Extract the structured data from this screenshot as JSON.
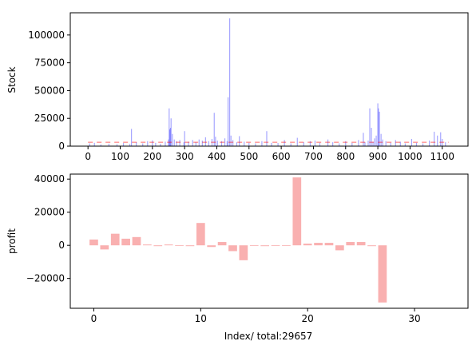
{
  "chart_data": [
    {
      "type": "bar",
      "ylabel": "Stock",
      "xlim": [
        -55,
        1180
      ],
      "ylim": [
        0,
        120000
      ],
      "xticks": [
        0,
        100,
        200,
        300,
        400,
        500,
        600,
        700,
        800,
        900,
        1000,
        1100
      ],
      "yticks": [
        0,
        25000,
        50000,
        75000,
        100000
      ],
      "bar_color": "#0000ff",
      "mean_line": {
        "value": 3500,
        "color": "#ff0000"
      },
      "spikes": [
        [
          5,
          2500
        ],
        [
          20,
          3000
        ],
        [
          40,
          1500
        ],
        [
          65,
          2200
        ],
        [
          90,
          1800
        ],
        [
          110,
          2800
        ],
        [
          130,
          2000
        ],
        [
          135,
          15500
        ],
        [
          150,
          3500
        ],
        [
          170,
          2500
        ],
        [
          185,
          4500
        ],
        [
          200,
          5200
        ],
        [
          210,
          3000
        ],
        [
          225,
          2200
        ],
        [
          240,
          4000
        ],
        [
          250,
          6000
        ],
        [
          252,
          34000
        ],
        [
          254,
          15000
        ],
        [
          256,
          16500
        ],
        [
          258,
          25000
        ],
        [
          262,
          11000
        ],
        [
          268,
          6000
        ],
        [
          275,
          4500
        ],
        [
          285,
          5500
        ],
        [
          298,
          3500
        ],
        [
          300,
          13500
        ],
        [
          312,
          4000
        ],
        [
          325,
          5500
        ],
        [
          335,
          3500
        ],
        [
          345,
          6000
        ],
        [
          355,
          5000
        ],
        [
          365,
          8000
        ],
        [
          375,
          4500
        ],
        [
          385,
          6500
        ],
        [
          392,
          30000
        ],
        [
          396,
          8500
        ],
        [
          402,
          5000
        ],
        [
          415,
          4500
        ],
        [
          425,
          7000
        ],
        [
          432,
          4500
        ],
        [
          435,
          44000
        ],
        [
          440,
          115000
        ],
        [
          444,
          9500
        ],
        [
          450,
          5500
        ],
        [
          462,
          3500
        ],
        [
          470,
          9000
        ],
        [
          485,
          4000
        ],
        [
          500,
          3000
        ],
        [
          520,
          2500
        ],
        [
          540,
          4500
        ],
        [
          555,
          13500
        ],
        [
          570,
          3000
        ],
        [
          590,
          2800
        ],
        [
          610,
          5500
        ],
        [
          630,
          2500
        ],
        [
          650,
          7500
        ],
        [
          670,
          3500
        ],
        [
          690,
          4500
        ],
        [
          705,
          5000
        ],
        [
          720,
          3000
        ],
        [
          745,
          6000
        ],
        [
          760,
          3500
        ],
        [
          780,
          2500
        ],
        [
          800,
          4500
        ],
        [
          820,
          3000
        ],
        [
          840,
          5500
        ],
        [
          855,
          12000
        ],
        [
          860,
          3500
        ],
        [
          870,
          5000
        ],
        [
          875,
          34000
        ],
        [
          880,
          16500
        ],
        [
          885,
          4000
        ],
        [
          890,
          7000
        ],
        [
          895,
          9500
        ],
        [
          900,
          38500
        ],
        [
          902,
          34000
        ],
        [
          905,
          31000
        ],
        [
          910,
          11000
        ],
        [
          915,
          6000
        ],
        [
          925,
          4500
        ],
        [
          940,
          3000
        ],
        [
          955,
          5500
        ],
        [
          970,
          4000
        ],
        [
          985,
          2500
        ],
        [
          1005,
          6500
        ],
        [
          1020,
          3000
        ],
        [
          1040,
          2500
        ],
        [
          1060,
          5000
        ],
        [
          1075,
          13000
        ],
        [
          1085,
          9500
        ],
        [
          1095,
          12500
        ],
        [
          1100,
          6500
        ],
        [
          1110,
          3500
        ]
      ]
    },
    {
      "type": "bar",
      "xlabel": "Index/ total:29657",
      "ylabel": "profit",
      "xlim": [
        -2.2,
        35
      ],
      "ylim": [
        -38000,
        43000
      ],
      "xticks": [
        0,
        10,
        20,
        30
      ],
      "yticks": [
        -20000,
        0,
        20000,
        40000
      ],
      "bar_color": "#f9b0b0",
      "x": [
        0,
        1,
        2,
        3,
        4,
        5,
        6,
        7,
        8,
        9,
        10,
        11,
        12,
        13,
        14,
        15,
        16,
        17,
        18,
        19,
        20,
        21,
        22,
        23,
        24,
        25,
        26,
        27
      ],
      "values": [
        3500,
        -2500,
        7000,
        4000,
        5000,
        500,
        -500,
        500,
        0,
        -500,
        13500,
        -1000,
        2000,
        -3500,
        -9000,
        0,
        -500,
        0,
        0,
        41000,
        1000,
        1500,
        1500,
        -3000,
        2000,
        2000,
        -500,
        -34500
      ]
    }
  ]
}
